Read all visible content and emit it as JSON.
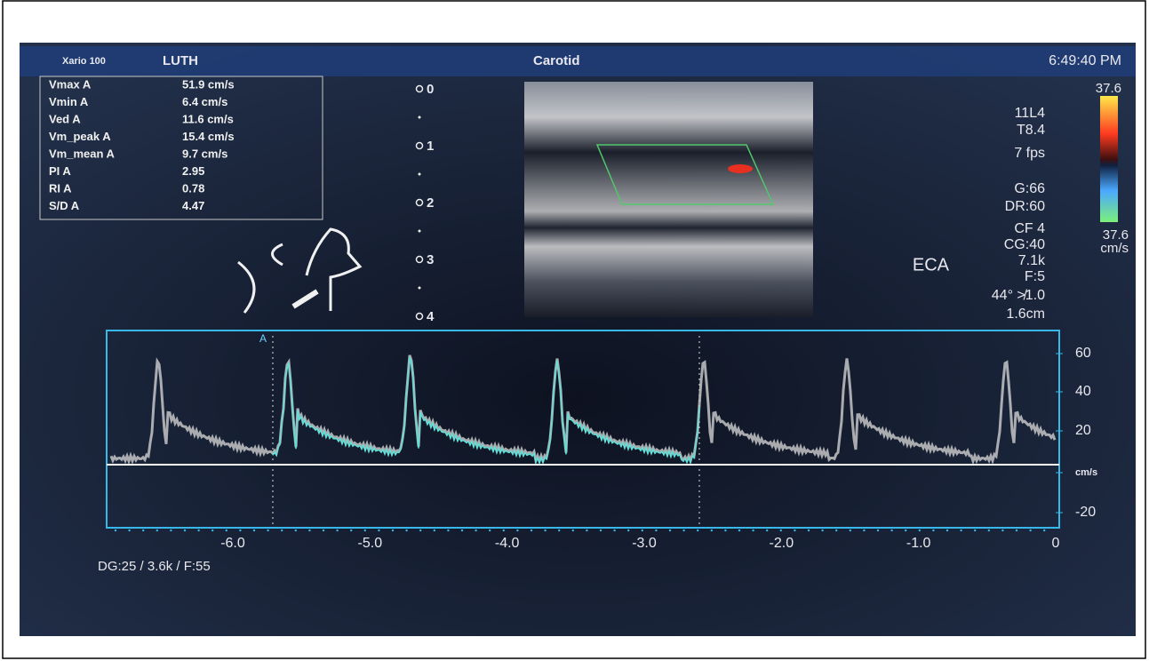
{
  "header": {
    "device": "Xario 100",
    "institution": "LUTH",
    "exam": "Carotid",
    "time": "6:49:40 PM"
  },
  "measurements": {
    "rows": [
      [
        "Vmax A",
        "51.9 cm/s"
      ],
      [
        "Vmin A",
        "6.4 cm/s"
      ],
      [
        "Ved A",
        "11.6 cm/s"
      ],
      [
        "Vm_peak A",
        "15.4 cm/s"
      ],
      [
        "Vm_mean A",
        "9.7 cm/s"
      ],
      [
        "PI A",
        "2.95"
      ],
      [
        "RI A",
        "0.78"
      ],
      [
        "S/D A",
        "4.47"
      ]
    ]
  },
  "depth_scale": [
    "0",
    "1",
    "2",
    "3",
    "4"
  ],
  "probe_settings": [
    "11L4",
    "T8.4",
    "7 fps",
    "G:66",
    "DR:60",
    "CF 4",
    "CG:40",
    "7.1k",
    "F:5",
    "44°  ≯1.0",
    "1.6cm"
  ],
  "vessel_label": "ECA",
  "color_scale": {
    "top": "37.6",
    "bottom": "37.6",
    "unit": "cm/s"
  },
  "doppler": {
    "cursor_label": "A",
    "velocity_labels": [
      "60",
      "40",
      "20",
      "cm/s",
      "-20"
    ],
    "time_labels": [
      "-6.0",
      "-5.0",
      "-4.0",
      "-3.0",
      "-2.0",
      "-1.0",
      "0"
    ]
  },
  "footer": "DG:25  / 3.6k    / F:55"
}
